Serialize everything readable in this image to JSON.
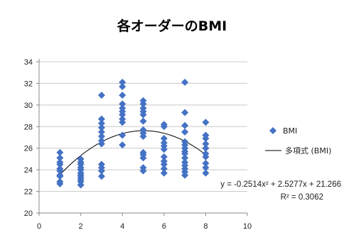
{
  "chart_data": {
    "type": "scatter",
    "title": "各オーダーのBMI",
    "xlim": [
      0,
      10
    ],
    "ylim": [
      20,
      34
    ],
    "x_ticks": [
      "0",
      "2",
      "4",
      "6",
      "8",
      "10"
    ],
    "y_ticks": [
      "20",
      "22",
      "24",
      "26",
      "28",
      "30",
      "32",
      "34"
    ],
    "grid": "horizontal",
    "legend_position": "right",
    "marker_color": "#4472C4",
    "trend_color": "#000000",
    "series": [
      {
        "name": "BMI",
        "kind": "scatter",
        "points": [
          [
            1,
            25.6
          ],
          [
            1,
            25.1
          ],
          [
            1,
            24.7
          ],
          [
            1,
            24.5
          ],
          [
            1,
            24.1
          ],
          [
            1,
            23.9
          ],
          [
            1,
            23.5
          ],
          [
            1,
            23.4
          ],
          [
            1,
            22.9
          ],
          [
            1,
            22.7
          ],
          [
            2,
            25.0
          ],
          [
            2,
            24.7
          ],
          [
            2,
            24.5
          ],
          [
            2,
            24.2
          ],
          [
            2,
            24.0
          ],
          [
            2,
            23.7
          ],
          [
            2,
            23.5
          ],
          [
            2,
            23.3
          ],
          [
            2,
            23.1
          ],
          [
            2,
            22.9
          ],
          [
            2,
            22.6
          ],
          [
            3,
            30.9
          ],
          [
            3,
            28.7
          ],
          [
            3,
            28.3
          ],
          [
            3,
            27.9
          ],
          [
            3,
            27.5
          ],
          [
            3,
            27.1
          ],
          [
            3,
            26.7
          ],
          [
            3,
            26.4
          ],
          [
            3,
            24.5
          ],
          [
            3,
            24.2
          ],
          [
            3,
            23.9
          ],
          [
            3,
            23.4
          ],
          [
            4,
            32.1
          ],
          [
            4,
            31.7
          ],
          [
            4,
            30.9
          ],
          [
            4,
            30.1
          ],
          [
            4,
            29.7
          ],
          [
            4,
            29.4
          ],
          [
            4,
            29.1
          ],
          [
            4,
            28.7
          ],
          [
            4,
            28.4
          ],
          [
            4,
            27.2
          ],
          [
            4,
            26.3
          ],
          [
            5,
            30.4
          ],
          [
            5,
            30.1
          ],
          [
            5,
            29.7
          ],
          [
            5,
            29.4
          ],
          [
            5,
            29.1
          ],
          [
            5,
            28.5
          ],
          [
            5,
            27.7
          ],
          [
            5,
            27.4
          ],
          [
            5,
            27.1
          ],
          [
            5,
            25.6
          ],
          [
            5,
            25.4
          ],
          [
            5,
            25.1
          ],
          [
            5,
            24.2
          ],
          [
            5,
            23.9
          ],
          [
            6,
            28.2
          ],
          [
            6,
            28.0
          ],
          [
            6,
            26.9
          ],
          [
            6,
            26.5
          ],
          [
            6,
            26.2
          ],
          [
            6,
            25.9
          ],
          [
            6,
            25.2
          ],
          [
            6,
            24.8
          ],
          [
            6,
            24.5
          ],
          [
            6,
            24.1
          ],
          [
            6,
            23.7
          ],
          [
            7,
            32.1
          ],
          [
            7,
            29.3
          ],
          [
            7,
            28.1
          ],
          [
            7,
            27.5
          ],
          [
            7,
            26.6
          ],
          [
            7,
            26.3
          ],
          [
            7,
            26.0
          ],
          [
            7,
            25.7
          ],
          [
            7,
            25.5
          ],
          [
            7,
            25.1
          ],
          [
            7,
            24.7
          ],
          [
            7,
            24.4
          ],
          [
            7,
            24.1
          ],
          [
            7,
            23.8
          ],
          [
            7,
            23.5
          ],
          [
            8,
            28.4
          ],
          [
            8,
            27.2
          ],
          [
            8,
            26.9
          ],
          [
            8,
            26.4
          ],
          [
            8,
            26.0
          ],
          [
            8,
            25.5
          ],
          [
            8,
            25.2
          ],
          [
            8,
            24.6
          ],
          [
            8,
            24.2
          ],
          [
            8,
            23.7
          ]
        ]
      },
      {
        "name": "多項式 (BMI)",
        "kind": "trendline",
        "coefficients": {
          "a": -0.2514,
          "b": 2.5277,
          "c": 21.266
        },
        "x_range": [
          1,
          8
        ]
      }
    ],
    "equation_label": "y = -0.2514x² + 2.5277x + 21.266",
    "r2_label": "R² = 0.3062"
  }
}
